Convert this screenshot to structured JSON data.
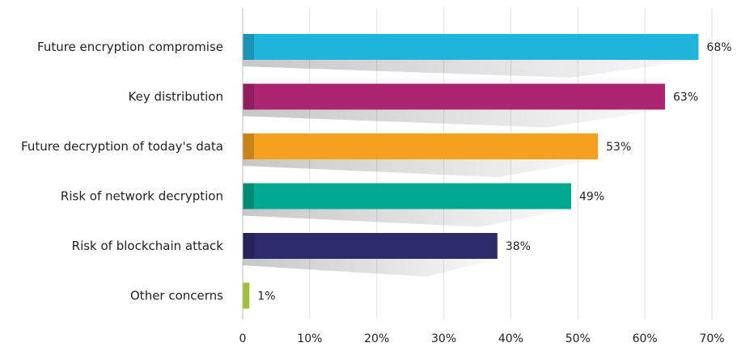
{
  "chart_data": {
    "type": "bar",
    "orientation": "horizontal",
    "categories": [
      "Future encryption compromise",
      "Key distribution",
      "Future decryption of today's data",
      "Risk of network decryption",
      "Risk of blockchain attack",
      "Other concerns"
    ],
    "values": [
      68,
      63,
      53,
      49,
      38,
      1
    ],
    "value_labels": [
      "68%",
      "63%",
      "53%",
      "49%",
      "38%",
      "1%"
    ],
    "colors": [
      "#1fb5dc",
      "#ad2470",
      "#f5a11f",
      "#00a98f",
      "#2d2b6b",
      "#9fbf35"
    ],
    "xlim": [
      0,
      70
    ],
    "x_ticks": [
      0,
      10,
      20,
      30,
      40,
      50,
      60,
      70
    ],
    "x_tick_labels": [
      "0",
      "10%",
      "20%",
      "30%",
      "40%",
      "50%",
      "60%",
      "70%"
    ],
    "grid": true,
    "legend": "none",
    "title": "",
    "xlabel": "",
    "ylabel": ""
  }
}
